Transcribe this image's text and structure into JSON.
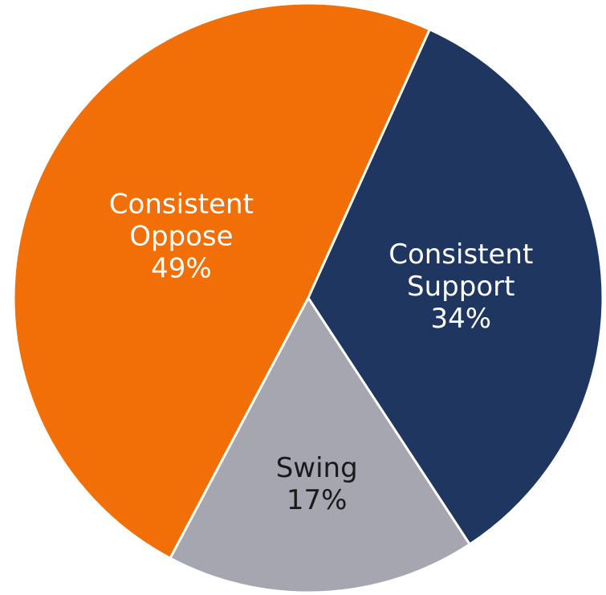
{
  "chart_data": {
    "type": "pie",
    "slices": [
      {
        "label_lines": [
          "Consistent",
          "Support"
        ],
        "value": 34,
        "value_label": "34%",
        "color": "#1f3661",
        "label_color": "#ffffff"
      },
      {
        "label_lines": [
          "Swing"
        ],
        "value": 17,
        "value_label": "17%",
        "color": "#a5a6b0",
        "label_color": "#1a1a1a"
      },
      {
        "label_lines": [
          "Consistent",
          "Oppose"
        ],
        "value": 49,
        "value_label": "49%",
        "color": "#f26f07",
        "label_color": "#ffffff"
      }
    ],
    "title": "",
    "legend": "none"
  }
}
